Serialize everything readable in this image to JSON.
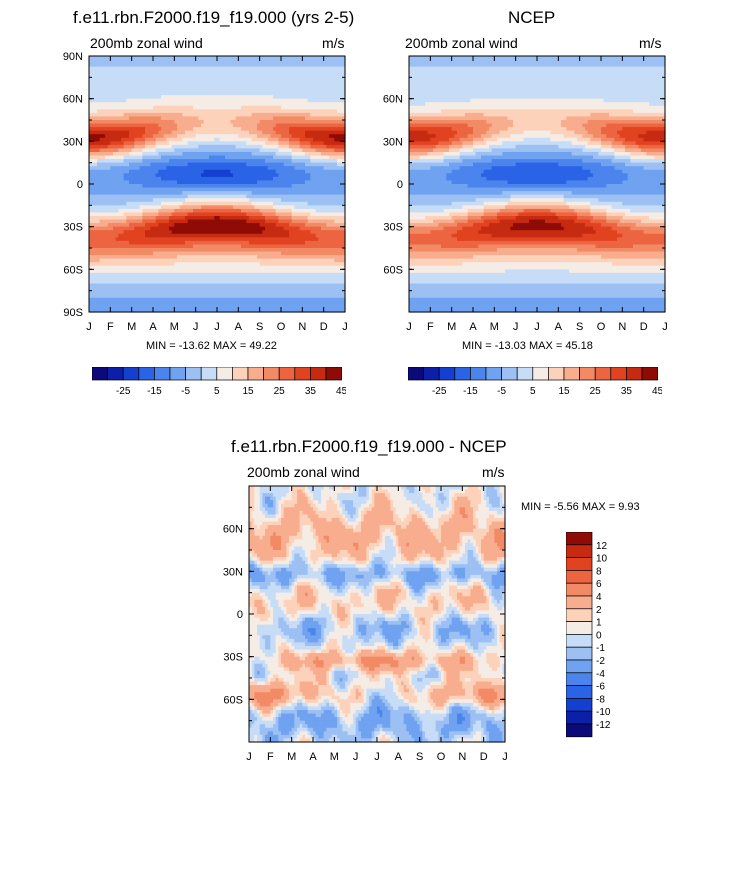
{
  "chart_data": [
    {
      "type": "contour",
      "title": "f.e11.rbn.F2000.f19_f19.000 (yrs 2-5)",
      "left_label": "200mb zonal wind",
      "right_label": "m/s",
      "stats": "MIN = -13.62 MAX =  49.22",
      "x_ticks": [
        "J",
        "F",
        "M",
        "A",
        "M",
        "J",
        "J",
        "A",
        "S",
        "O",
        "N",
        "D",
        "J"
      ],
      "y_ticks": [
        "90N",
        "60N",
        "30N",
        "0",
        "30S",
        "60S",
        "90S"
      ],
      "colorbar_labels": [
        "-25",
        "-15",
        "-5",
        "5",
        "15",
        "25",
        "35",
        "45"
      ],
      "min": -13.62,
      "max": 49.22
    },
    {
      "type": "contour",
      "title": "NCEP",
      "left_label": "200mb zonal wind",
      "right_label": "m/s",
      "stats": "MIN = -13.03 MAX =  45.18",
      "x_ticks": [
        "J",
        "F",
        "M",
        "A",
        "M",
        "J",
        "J",
        "A",
        "S",
        "O",
        "N",
        "D",
        "J"
      ],
      "y_ticks": [
        "60N",
        "30N",
        "0",
        "30S",
        "60S"
      ],
      "colorbar_labels": [
        "-25",
        "-15",
        "-5",
        "5",
        "15",
        "25",
        "35",
        "45"
      ],
      "min": -13.03,
      "max": 45.18
    },
    {
      "type": "contour",
      "title": "f.e11.rbn.F2000.f19_f19.000 - NCEP",
      "left_label": "200mb zonal wind",
      "right_label": "m/s",
      "stats": "MIN =  -5.56 MAX =   9.93",
      "x_ticks": [
        "J",
        "F",
        "M",
        "A",
        "M",
        "J",
        "J",
        "A",
        "S",
        "O",
        "N",
        "D",
        "J"
      ],
      "y_ticks": [
        "60N",
        "30N",
        "0",
        "30S",
        "60S"
      ],
      "colorbar_labels": [
        "12",
        "10",
        "8",
        "6",
        "4",
        "2",
        "1",
        "0",
        "-1",
        "-2",
        "-4",
        "-6",
        "-8",
        "-10",
        "-12"
      ],
      "min": -5.56,
      "max": 9.93
    }
  ],
  "colors": {
    "levels16": [
      "#0a0a7a",
      "#0b1fa8",
      "#1340d0",
      "#2a63e6",
      "#4a84ec",
      "#6fa2f0",
      "#9cc0f3",
      "#c6dcf7",
      "#f5ece6",
      "#fcd2bb",
      "#f8ae8e",
      "#f28a66",
      "#ec6440",
      "#e14220",
      "#c62a10",
      "#8e0b06"
    ],
    "diff_scale": [
      "#8e0b06",
      "#c62a10",
      "#e14220",
      "#ec6440",
      "#f28a66",
      "#f8ae8e",
      "#fcd2bb",
      "#f5ece6",
      "#c6dcf7",
      "#9cc0f3",
      "#6fa2f0",
      "#4a84ec",
      "#2a63e6",
      "#1340d0",
      "#0b1fa8",
      "#0a0a7a"
    ]
  }
}
